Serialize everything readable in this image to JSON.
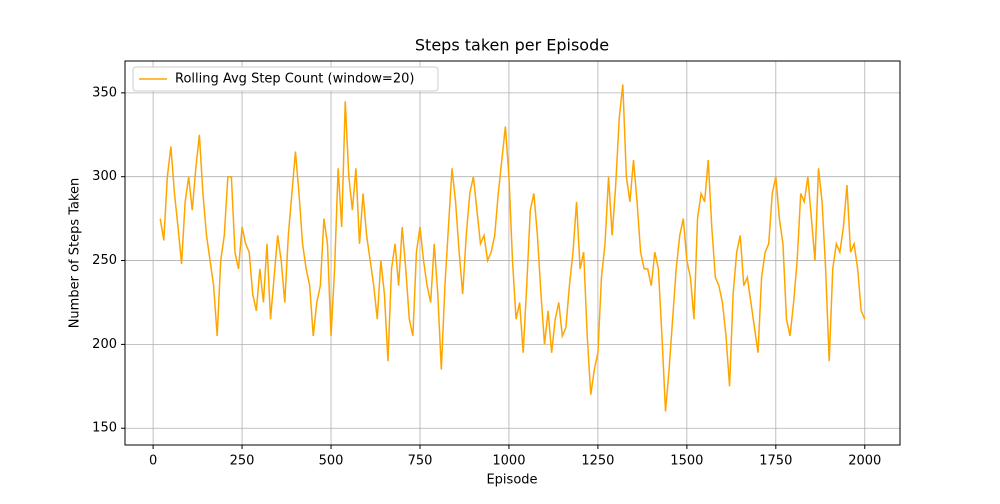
{
  "chart_data": {
    "type": "line",
    "title": "Steps taken per Episode",
    "xlabel": "Episode",
    "ylabel": "Number of Steps Taken",
    "x": [
      20,
      30,
      40,
      50,
      60,
      70,
      80,
      90,
      100,
      110,
      120,
      130,
      140,
      150,
      160,
      170,
      180,
      190,
      200,
      210,
      220,
      230,
      240,
      250,
      260,
      270,
      280,
      290,
      300,
      310,
      320,
      330,
      340,
      350,
      360,
      370,
      380,
      390,
      400,
      410,
      420,
      430,
      440,
      450,
      460,
      470,
      480,
      490,
      500,
      510,
      520,
      530,
      540,
      550,
      560,
      570,
      580,
      590,
      600,
      610,
      620,
      630,
      640,
      650,
      660,
      670,
      680,
      690,
      700,
      710,
      720,
      730,
      740,
      750,
      760,
      770,
      780,
      790,
      800,
      810,
      820,
      830,
      840,
      850,
      860,
      870,
      880,
      890,
      900,
      910,
      920,
      930,
      940,
      950,
      960,
      970,
      980,
      990,
      1000,
      1010,
      1020,
      1030,
      1040,
      1050,
      1060,
      1070,
      1080,
      1090,
      1100,
      1110,
      1120,
      1130,
      1140,
      1150,
      1160,
      1170,
      1180,
      1190,
      1200,
      1210,
      1220,
      1230,
      1240,
      1250,
      1260,
      1270,
      1280,
      1290,
      1300,
      1310,
      1320,
      1330,
      1340,
      1350,
      1360,
      1370,
      1380,
      1390,
      1400,
      1410,
      1420,
      1430,
      1440,
      1450,
      1460,
      1470,
      1480,
      1490,
      1500,
      1510,
      1520,
      1530,
      1540,
      1550,
      1560,
      1570,
      1580,
      1590,
      1600,
      1610,
      1620,
      1630,
      1640,
      1650,
      1660,
      1670,
      1680,
      1690,
      1700,
      1710,
      1720,
      1730,
      1740,
      1750,
      1760,
      1770,
      1780,
      1790,
      1800,
      1810,
      1820,
      1830,
      1840,
      1850,
      1860,
      1870,
      1880,
      1890,
      1900,
      1910,
      1920,
      1930,
      1940,
      1950,
      1960,
      1970,
      1980,
      1990,
      2000
    ],
    "series": [
      {
        "name": "Rolling Avg Step Count (window=20)",
        "color": "#ffa500",
        "values": [
          275,
          262,
          300,
          318,
          290,
          270,
          248,
          285,
          300,
          280,
          305,
          325,
          290,
          265,
          250,
          235,
          205,
          250,
          265,
          300,
          300,
          255,
          245,
          270,
          260,
          255,
          230,
          220,
          245,
          225,
          260,
          215,
          240,
          265,
          250,
          225,
          265,
          290,
          315,
          290,
          260,
          245,
          235,
          205,
          225,
          235,
          275,
          260,
          205,
          245,
          305,
          270,
          345,
          300,
          280,
          305,
          260,
          290,
          265,
          250,
          235,
          215,
          250,
          230,
          190,
          245,
          260,
          235,
          270,
          245,
          215,
          205,
          255,
          270,
          250,
          235,
          225,
          260,
          230,
          185,
          235,
          270,
          305,
          285,
          255,
          230,
          265,
          290,
          300,
          280,
          260,
          265,
          250,
          255,
          265,
          290,
          310,
          330,
          300,
          250,
          215,
          225,
          195,
          235,
          280,
          290,
          265,
          230,
          200,
          220,
          195,
          215,
          225,
          205,
          210,
          235,
          255,
          285,
          245,
          255,
          205,
          170,
          185,
          195,
          240,
          260,
          300,
          265,
          295,
          335,
          355,
          300,
          285,
          310,
          285,
          255,
          245,
          245,
          235,
          255,
          245,
          205,
          160,
          185,
          215,
          245,
          265,
          275,
          250,
          240,
          215,
          275,
          290,
          285,
          310,
          270,
          240,
          235,
          225,
          205,
          175,
          230,
          255,
          265,
          235,
          240,
          225,
          210,
          195,
          240,
          255,
          260,
          290,
          300,
          275,
          260,
          215,
          205,
          225,
          250,
          290,
          285,
          300,
          275,
          250,
          305,
          285,
          245,
          190,
          245,
          260,
          255,
          270,
          295,
          255,
          260,
          245,
          220,
          215
        ]
      }
    ],
    "xlim": [
      -79,
      2099
    ],
    "ylim": [
      140,
      369
    ],
    "xticks": [
      0,
      250,
      500,
      750,
      1000,
      1250,
      1500,
      1750,
      2000
    ],
    "yticks": [
      150,
      200,
      250,
      300,
      350
    ],
    "grid": true,
    "legend": "upper left"
  }
}
